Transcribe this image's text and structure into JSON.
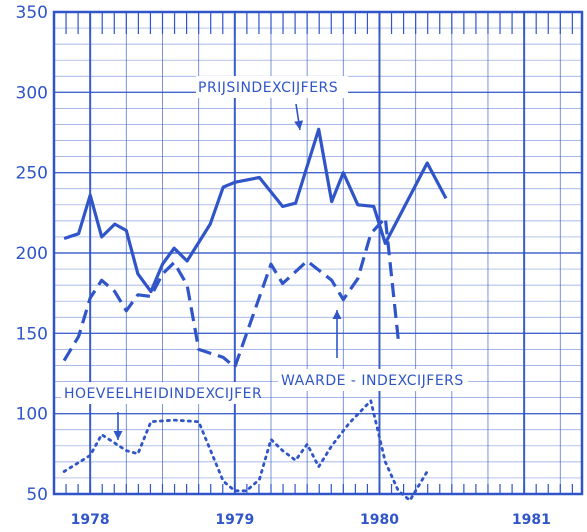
{
  "chart_data": {
    "type": "line",
    "title": "",
    "xlabel": "",
    "ylabel": "",
    "ylim": [
      50,
      350
    ],
    "yticks": [
      350,
      300,
      250,
      200,
      150,
      100,
      50
    ],
    "xtick_labels": [
      "1978",
      "1979",
      "1980",
      "1981"
    ],
    "grid": true,
    "color": "#2f55c8",
    "series": [
      {
        "name": "PRIJSINDEXCIJFERS",
        "style": "solid",
        "points": [
          {
            "x": 1977.82,
            "y": 209
          },
          {
            "x": 1977.92,
            "y": 212
          },
          {
            "x": 1978.0,
            "y": 236
          },
          {
            "x": 1978.08,
            "y": 210
          },
          {
            "x": 1978.17,
            "y": 218
          },
          {
            "x": 1978.25,
            "y": 214
          },
          {
            "x": 1978.33,
            "y": 187
          },
          {
            "x": 1978.42,
            "y": 176
          },
          {
            "x": 1978.5,
            "y": 193
          },
          {
            "x": 1978.58,
            "y": 203
          },
          {
            "x": 1978.67,
            "y": 195
          },
          {
            "x": 1978.83,
            "y": 218
          },
          {
            "x": 1978.92,
            "y": 241
          },
          {
            "x": 1979.0,
            "y": 244
          },
          {
            "x": 1979.17,
            "y": 247
          },
          {
            "x": 1979.33,
            "y": 229
          },
          {
            "x": 1979.42,
            "y": 231
          },
          {
            "x": 1979.58,
            "y": 277
          },
          {
            "x": 1979.67,
            "y": 232
          },
          {
            "x": 1979.75,
            "y": 250
          },
          {
            "x": 1979.85,
            "y": 230
          },
          {
            "x": 1979.96,
            "y": 229
          },
          {
            "x": 1980.04,
            "y": 206
          },
          {
            "x": 1980.33,
            "y": 256
          },
          {
            "x": 1980.46,
            "y": 234
          }
        ]
      },
      {
        "name": "WAARDE - INDEXCIJFERS",
        "style": "dashed",
        "points": [
          {
            "x": 1977.82,
            "y": 133
          },
          {
            "x": 1977.92,
            "y": 148
          },
          {
            "x": 1978.0,
            "y": 172
          },
          {
            "x": 1978.08,
            "y": 183
          },
          {
            "x": 1978.17,
            "y": 176
          },
          {
            "x": 1978.25,
            "y": 164
          },
          {
            "x": 1978.33,
            "y": 174
          },
          {
            "x": 1978.42,
            "y": 173
          },
          {
            "x": 1978.5,
            "y": 187
          },
          {
            "x": 1978.58,
            "y": 194
          },
          {
            "x": 1978.67,
            "y": 180
          },
          {
            "x": 1978.75,
            "y": 140
          },
          {
            "x": 1978.92,
            "y": 135
          },
          {
            "x": 1979.0,
            "y": 129
          },
          {
            "x": 1979.25,
            "y": 193
          },
          {
            "x": 1979.33,
            "y": 181
          },
          {
            "x": 1979.5,
            "y": 195
          },
          {
            "x": 1979.67,
            "y": 183
          },
          {
            "x": 1979.75,
            "y": 171
          },
          {
            "x": 1979.85,
            "y": 184
          },
          {
            "x": 1979.94,
            "y": 212
          },
          {
            "x": 1980.04,
            "y": 222
          },
          {
            "x": 1980.13,
            "y": 146
          }
        ]
      },
      {
        "name": "HOEVEELHEIDINDEXCIJFER",
        "style": "dotted",
        "points": [
          {
            "x": 1977.82,
            "y": 64
          },
          {
            "x": 1978.0,
            "y": 74
          },
          {
            "x": 1978.08,
            "y": 87
          },
          {
            "x": 1978.25,
            "y": 77
          },
          {
            "x": 1978.33,
            "y": 75
          },
          {
            "x": 1978.42,
            "y": 95
          },
          {
            "x": 1978.58,
            "y": 96
          },
          {
            "x": 1978.75,
            "y": 95
          },
          {
            "x": 1978.92,
            "y": 58
          },
          {
            "x": 1979.0,
            "y": 52
          },
          {
            "x": 1979.08,
            "y": 52
          },
          {
            "x": 1979.17,
            "y": 59
          },
          {
            "x": 1979.25,
            "y": 84
          },
          {
            "x": 1979.33,
            "y": 77
          },
          {
            "x": 1979.42,
            "y": 71
          },
          {
            "x": 1979.5,
            "y": 81
          },
          {
            "x": 1979.58,
            "y": 67
          },
          {
            "x": 1979.67,
            "y": 80
          },
          {
            "x": 1979.79,
            "y": 94
          },
          {
            "x": 1979.94,
            "y": 108
          },
          {
            "x": 1980.04,
            "y": 70
          },
          {
            "x": 1980.13,
            "y": 52
          },
          {
            "x": 1980.21,
            "y": 46
          },
          {
            "x": 1980.33,
            "y": 64
          }
        ]
      }
    ],
    "annotations": [
      {
        "text": "PRIJSINDEXCIJFERS",
        "series": "PRIJSINDEXCIJFERS"
      },
      {
        "text": "WAARDE - INDEXCIJFERS",
        "series": "WAARDE - INDEXCIJFERS"
      },
      {
        "text": "HOEVEELHEIDINDEXCIJFER",
        "series": "HOEVEELHEIDINDEXCIJFER"
      }
    ]
  }
}
